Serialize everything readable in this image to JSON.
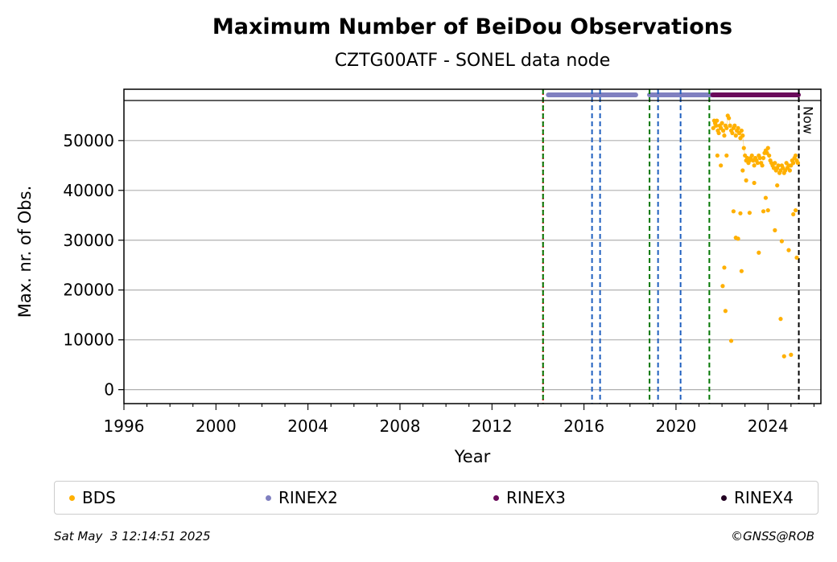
{
  "chart_data": {
    "type": "scatter",
    "title": "Maximum Number of BeiDou Observations",
    "subtitle": "CZTG00ATF - SONEL data node",
    "xlabel": "Year",
    "ylabel": "Max. nr. of Obs.",
    "xlim": [
      1996.0,
      2026.3
    ],
    "ylim": [
      -2800,
      60300
    ],
    "x_ticks": [
      "1996",
      "2000",
      "2004",
      "2008",
      "2012",
      "2016",
      "2020",
      "2024"
    ],
    "y_ticks": [
      "0",
      "10000",
      "20000",
      "30000",
      "40000",
      "50000"
    ],
    "grid": "horizontal",
    "now_label": "Now",
    "now_x": 2025.34,
    "vertical_lines": [
      {
        "x": 2014.22,
        "color": "#cc0000",
        "style": "dotted"
      },
      {
        "x": 2014.22,
        "color": "#007700",
        "style": "dashed"
      },
      {
        "x": 2016.35,
        "color": "#1f5fbf",
        "style": "dashed"
      },
      {
        "x": 2016.7,
        "color": "#1f5fbf",
        "style": "dashed"
      },
      {
        "x": 2018.85,
        "color": "#007700",
        "style": "dashed"
      },
      {
        "x": 2019.22,
        "color": "#1f5fbf",
        "style": "dashed"
      },
      {
        "x": 2020.2,
        "color": "#1f5fbf",
        "style": "dashed"
      },
      {
        "x": 2021.45,
        "color": "#007700",
        "style": "dashed"
      }
    ],
    "availability_bars": [
      {
        "series": "RINEX2",
        "start": 2014.45,
        "end": 2018.25
      },
      {
        "series": "RINEX2",
        "start": 2018.85,
        "end": 2021.55
      },
      {
        "series": "RINEX3",
        "start": 2021.6,
        "end": 2025.32
      }
    ],
    "series": [
      {
        "name": "BDS",
        "color": "#ffb000",
        "marker": "dot",
        "x": [
          2021.62,
          2021.66,
          2021.7,
          2021.74,
          2021.78,
          2021.82,
          2021.86,
          2021.9,
          2021.95,
          2022.0,
          2022.05,
          2022.1,
          2022.15,
          2022.2,
          2022.25,
          2022.3,
          2022.35,
          2022.4,
          2022.45,
          2022.5,
          2022.55,
          2022.6,
          2022.65,
          2022.7,
          2022.75,
          2022.8,
          2022.85,
          2022.9,
          2022.95,
          2023.0,
          2023.05,
          2023.1,
          2023.15,
          2023.2,
          2023.25,
          2023.3,
          2023.35,
          2023.4,
          2023.45,
          2023.5,
          2023.55,
          2023.6,
          2023.65,
          2023.7,
          2023.75,
          2023.8,
          2023.85,
          2023.9,
          2023.95,
          2024.0,
          2024.05,
          2024.1,
          2024.15,
          2024.2,
          2024.25,
          2024.3,
          2024.35,
          2024.4,
          2024.45,
          2024.5,
          2024.55,
          2024.6,
          2024.65,
          2024.7,
          2024.75,
          2024.8,
          2024.85,
          2024.9,
          2024.95,
          2025.0,
          2025.05,
          2025.1,
          2025.15,
          2025.2,
          2025.25,
          2025.3,
          2021.8,
          2021.95,
          2022.03,
          2022.1,
          2022.15,
          2022.2,
          2022.4,
          2022.5,
          2022.6,
          2022.7,
          2022.85,
          2022.9,
          2023.05,
          2023.2,
          2023.6,
          2023.8,
          2023.9,
          2024.0,
          2024.3,
          2024.55,
          2024.6,
          2024.7,
          2024.9,
          2025.0,
          2025.1,
          2025.2,
          2025.25,
          2024.4,
          2023.4,
          2022.8
        ],
        "y": [
          52500,
          54000,
          53500,
          53000,
          54000,
          52000,
          51500,
          53000,
          52500,
          53500,
          52000,
          51000,
          53000,
          52500,
          55000,
          54500,
          53000,
          52000,
          51500,
          52500,
          53000,
          51000,
          52000,
          52500,
          51500,
          50500,
          52000,
          51000,
          48500,
          47000,
          46000,
          46500,
          45500,
          46000,
          46500,
          47000,
          46000,
          45000,
          46500,
          46000,
          45500,
          47000,
          46500,
          45500,
          45000,
          46500,
          47500,
          48000,
          47500,
          48500,
          47000,
          46000,
          45500,
          45000,
          44500,
          45500,
          44000,
          44500,
          45000,
          43500,
          44000,
          45000,
          44500,
          43500,
          44000,
          45500,
          44500,
          45000,
          44000,
          45000,
          46000,
          45500,
          46500,
          47000,
          46000,
          45500,
          47000,
          45000,
          20800,
          24500,
          15800,
          47000,
          9800,
          35800,
          30500,
          30300,
          23800,
          44000,
          42000,
          35500,
          27500,
          35800,
          38500,
          36000,
          32000,
          14200,
          29800,
          6700,
          28000,
          7000,
          35200,
          36000,
          26500,
          41000,
          41500,
          35400
        ]
      },
      {
        "name": "RINEX2",
        "color": "#8080c0",
        "marker": "dot"
      },
      {
        "name": "RINEX3",
        "color": "#6a0a5a",
        "marker": "dot"
      },
      {
        "name": "RINEX4",
        "color": "#220022",
        "marker": "dot"
      }
    ]
  },
  "legend": {
    "items": [
      {
        "label": "BDS",
        "color": "#ffb000"
      },
      {
        "label": "RINEX2",
        "color": "#8080c0"
      },
      {
        "label": "RINEX3",
        "color": "#6a0a5a"
      },
      {
        "label": "RINEX4",
        "color": "#220022"
      }
    ]
  },
  "footer": {
    "timestamp": "Sat May  3 12:14:51 2025",
    "copyright": "©GNSS@ROB"
  }
}
